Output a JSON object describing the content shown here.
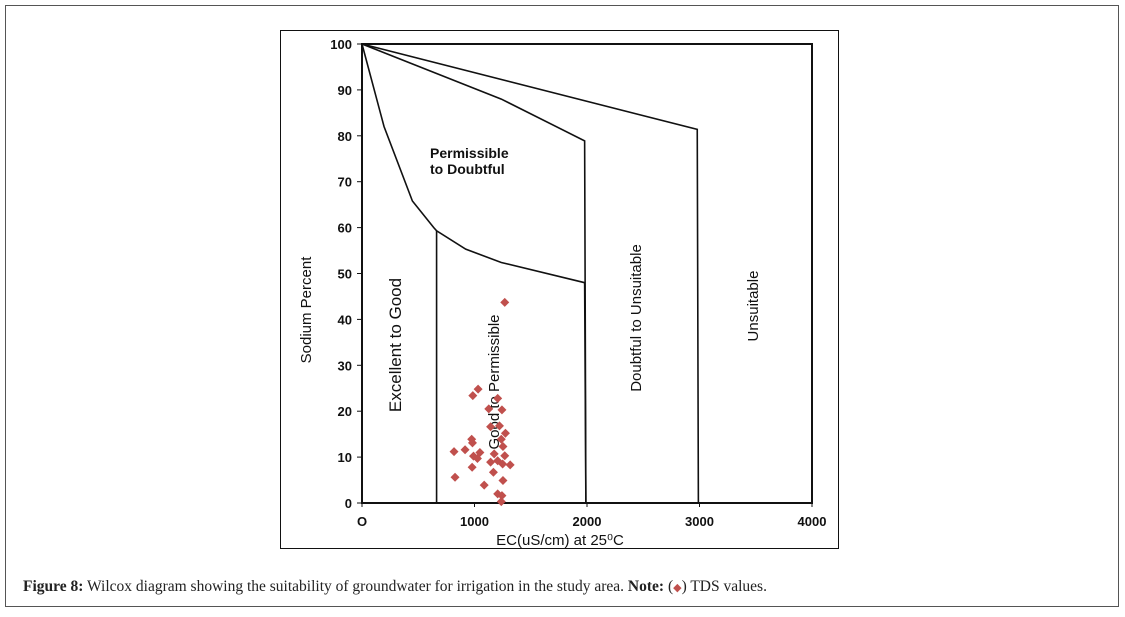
{
  "chart_data": {
    "type": "scatter",
    "title": "",
    "xlabel": "EC(uS/cm) at 25⁰C",
    "ylabel": "Sodium Percent",
    "xlim": [
      0,
      4000
    ],
    "ylim": [
      0,
      100
    ],
    "xticks": [
      0,
      1000,
      2000,
      3000,
      4000
    ],
    "xtick_labels": [
      "O",
      "1000",
      "2000",
      "3000",
      "4000"
    ],
    "yticks": [
      0,
      10,
      20,
      30,
      40,
      50,
      60,
      70,
      80,
      90,
      100
    ],
    "grid": false,
    "marker_color": "#c0504d",
    "marker": "diamond",
    "regions": [
      {
        "label": "Excellent to Good"
      },
      {
        "label": "Good to Permissible"
      },
      {
        "label": "Permissible to Doubtful",
        "lines": [
          "Permissible",
          "to Doubtful"
        ]
      },
      {
        "label": "Doubtful to Unsuitable"
      },
      {
        "label": "Unsuitable"
      }
    ],
    "boundaries": [
      {
        "points": [
          [
            0,
            100
          ],
          [
            196,
            82
          ],
          [
            448,
            65.8
          ],
          [
            638,
            60
          ],
          [
            663,
            59.3
          ],
          [
            922,
            55.3
          ],
          [
            1238,
            52.4
          ],
          [
            1979,
            48
          ],
          [
            1990,
            0
          ]
        ]
      },
      {
        "points": [
          [
            663,
            59.3
          ],
          [
            663,
            0
          ]
        ]
      },
      {
        "points": [
          [
            0,
            100
          ],
          [
            1238,
            88
          ],
          [
            1979,
            78.9
          ],
          [
            1990,
            0
          ]
        ]
      },
      {
        "points": [
          [
            0,
            100
          ],
          [
            2980,
            81.4
          ],
          [
            2990,
            0
          ]
        ]
      }
    ],
    "series": [
      {
        "x": [
          1269,
          1032,
          985,
          1206,
          1127,
          1244,
          1143,
          1222,
          1275,
          975,
          982,
          1238,
          1253,
          818,
          916,
          1048,
          991,
          1026,
          1175,
          1269,
          1206,
          1143,
          1317,
          1250,
          979,
          1168,
          827,
          1253,
          1086,
          1206,
          1244,
          1238
        ],
        "y": [
          43.7,
          24.8,
          23.4,
          22.8,
          20.5,
          20.3,
          16.6,
          16.8,
          15.2,
          13.9,
          13.1,
          13.9,
          12.3,
          11.2,
          11.6,
          11.0,
          10.2,
          9.7,
          10.7,
          10.3,
          9.2,
          8.9,
          8.3,
          8.5,
          7.8,
          6.7,
          5.6,
          4.9,
          3.9,
          2.0,
          1.6,
          0.3
        ]
      }
    ]
  },
  "caption": {
    "figure_label": "Figure 8:",
    "text": " Wilcox diagram showing the suitability of groundwater for irrigation in the study area. ",
    "note_label": "Note:",
    "note_open": " (",
    "note_symbol": "◆",
    "note_close": ") TDS values."
  }
}
